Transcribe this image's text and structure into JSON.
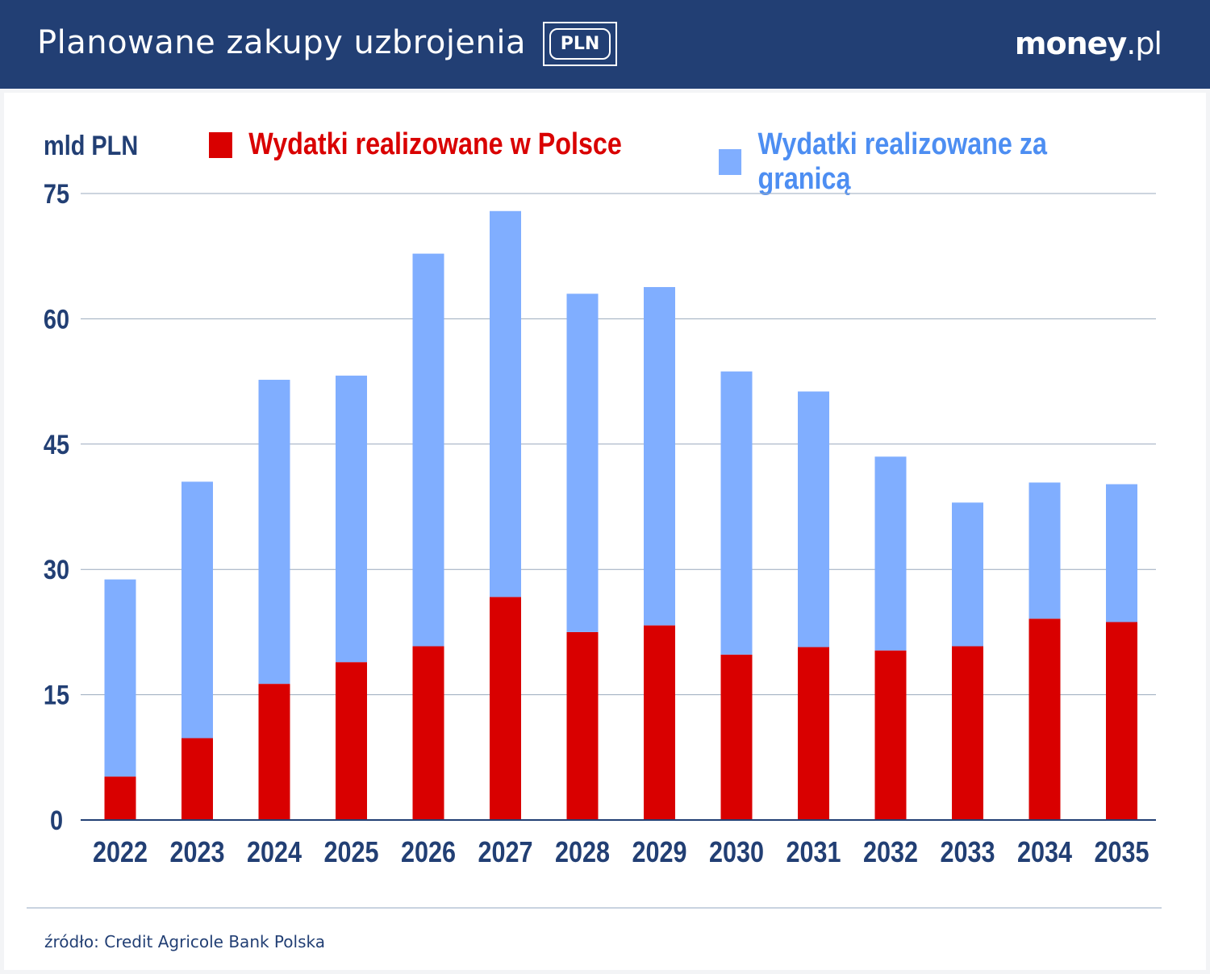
{
  "header": {
    "title": "Planowane zakupy uzbrojenia",
    "badge": "PLN",
    "logo_main": "money",
    "logo_suffix": ".pl"
  },
  "footer": {
    "source": "źródło: Credit Agricole Bank Polska"
  },
  "colors": {
    "header": "#223f74",
    "domestic": "#d90000",
    "abroad": "#80aeff",
    "text": "#223f74"
  },
  "chart_data": {
    "type": "bar",
    "stacked": true,
    "ylabel": "mld PLN",
    "ylim": [
      0,
      75
    ],
    "yticks": [
      0,
      15,
      30,
      45,
      60,
      75
    ],
    "grid": true,
    "legend_position": "top",
    "categories": [
      "2022",
      "2023",
      "2024",
      "2025",
      "2026",
      "2027",
      "2028",
      "2029",
      "2030",
      "2031",
      "2032",
      "2033",
      "2034",
      "2035"
    ],
    "series": [
      {
        "name": "Wydatki realizowane w Polsce",
        "color": "#d90000",
        "values": [
          5.2,
          9.8,
          16.3,
          18.9,
          20.8,
          26.7,
          22.5,
          23.3,
          19.8,
          20.7,
          20.3,
          20.8,
          24.1,
          23.7
        ]
      },
      {
        "name": "Wydatki realizowane za granicą",
        "color": "#80aeff",
        "values": [
          23.6,
          30.7,
          36.4,
          34.3,
          47.0,
          46.2,
          40.5,
          40.5,
          33.9,
          30.6,
          23.2,
          17.2,
          16.3,
          16.5
        ]
      }
    ]
  }
}
